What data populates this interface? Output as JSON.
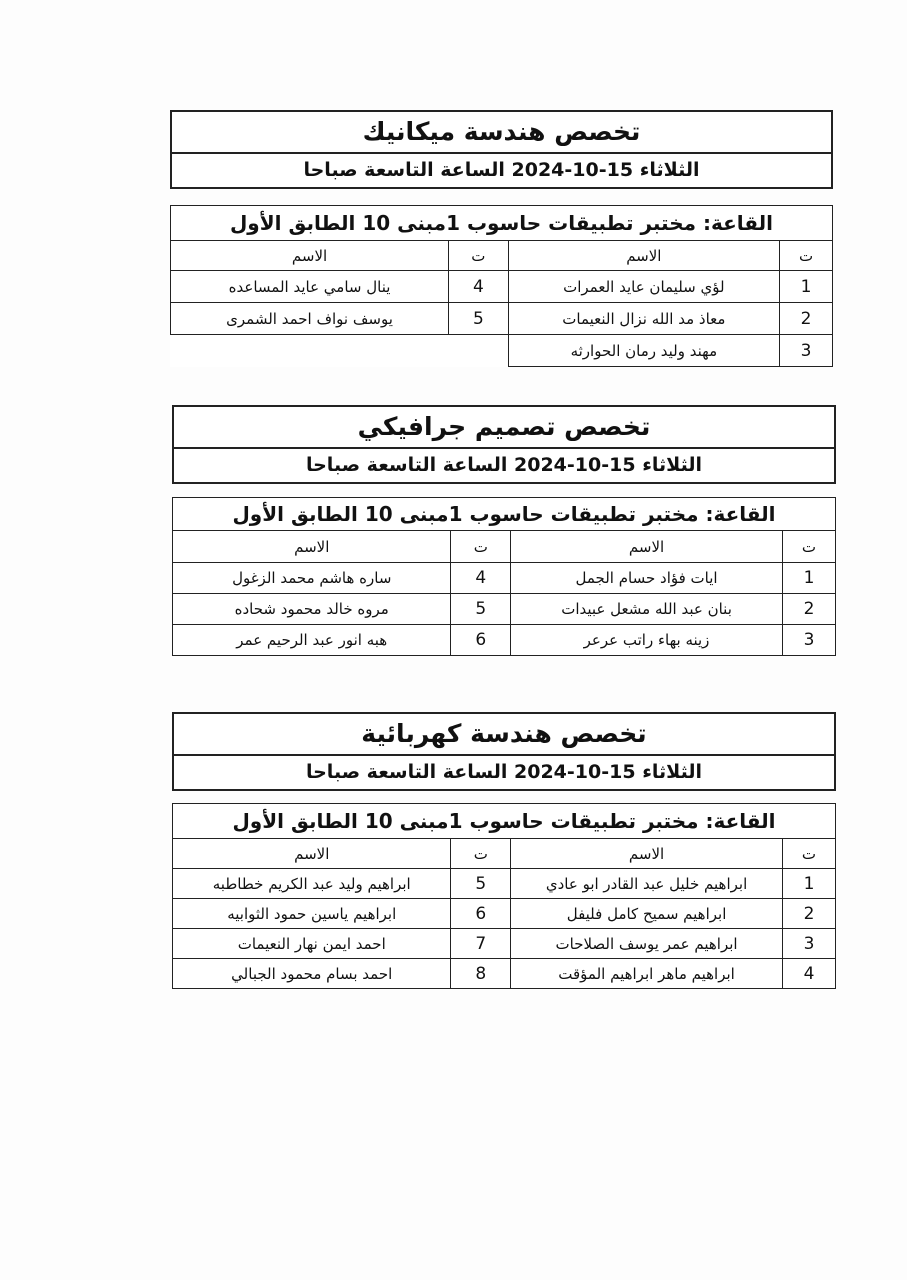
{
  "sections": [
    {
      "title": "تخصص هندسة ميكانيك",
      "date": "الثلاثاء 15-10-2024 الساعة التاسعة صباحا",
      "room": "القاعة: مختبر تطبيقات حاسوب 1مبنى 10 الطابق الأول",
      "col_num": "ت",
      "col_name": "الاسم",
      "rows": [
        {
          "r_num": "1",
          "r_name": "لؤي سليمان عايد العمرات",
          "l_num": "4",
          "l_name": "ينال سامي عايد المساعده"
        },
        {
          "r_num": "2",
          "r_name": "معاذ مد الله نزال النعيمات",
          "l_num": "5",
          "l_name": "يوسف نواف احمد الشمرى"
        },
        {
          "r_num": "3",
          "r_name": "مهند وليد رمان الحوارثه",
          "l_num": null,
          "l_name": null
        }
      ]
    },
    {
      "title": "تخصص تصميم جرافيكي",
      "date": "الثلاثاء 15-10-2024 الساعة التاسعة صباحا",
      "room": "القاعة: مختبر تطبيقات حاسوب 1مبنى 10 الطابق الأول",
      "col_num": "ت",
      "col_name": "الاسم",
      "rows": [
        {
          "r_num": "1",
          "r_name": "ايات فؤاد حسام الجمل",
          "l_num": "4",
          "l_name": "ساره هاشم محمد الزغول"
        },
        {
          "r_num": "2",
          "r_name": "بنان عبد الله مشعل عبيدات",
          "l_num": "5",
          "l_name": "مروه خالد محمود شحاده"
        },
        {
          "r_num": "3",
          "r_name": "زينه بهاء راتب عرعر",
          "l_num": "6",
          "l_name": "هبه انور عبد الرحيم عمر"
        }
      ]
    },
    {
      "title": "تخصص هندسة كهربائية",
      "date": "الثلاثاء 15-10-2024 الساعة التاسعة صباحا",
      "room": "القاعة: مختبر تطبيقات حاسوب 1مبنى 10 الطابق الأول",
      "col_num": "ت",
      "col_name": "الاسم",
      "rows": [
        {
          "r_num": "1",
          "r_name": "ابراهيم خليل عبد القادر ابو عادي",
          "l_num": "5",
          "l_name": "ابراهيم وليد عبد الكريم خطاطبه"
        },
        {
          "r_num": "2",
          "r_name": "ابراهيم سميح كامل فليفل",
          "l_num": "6",
          "l_name": "ابراهيم ياسين حمود الثوابيه"
        },
        {
          "r_num": "3",
          "r_name": "ابراهيم عمر يوسف الصلاحات",
          "l_num": "7",
          "l_name": "احمد ايمن نهار النعيمات"
        },
        {
          "r_num": "4",
          "r_name": "ابراهيم ماهر ابراهيم المؤقت",
          "l_num": "8",
          "l_name": "احمد بسام محمود الجبالي"
        }
      ]
    }
  ]
}
